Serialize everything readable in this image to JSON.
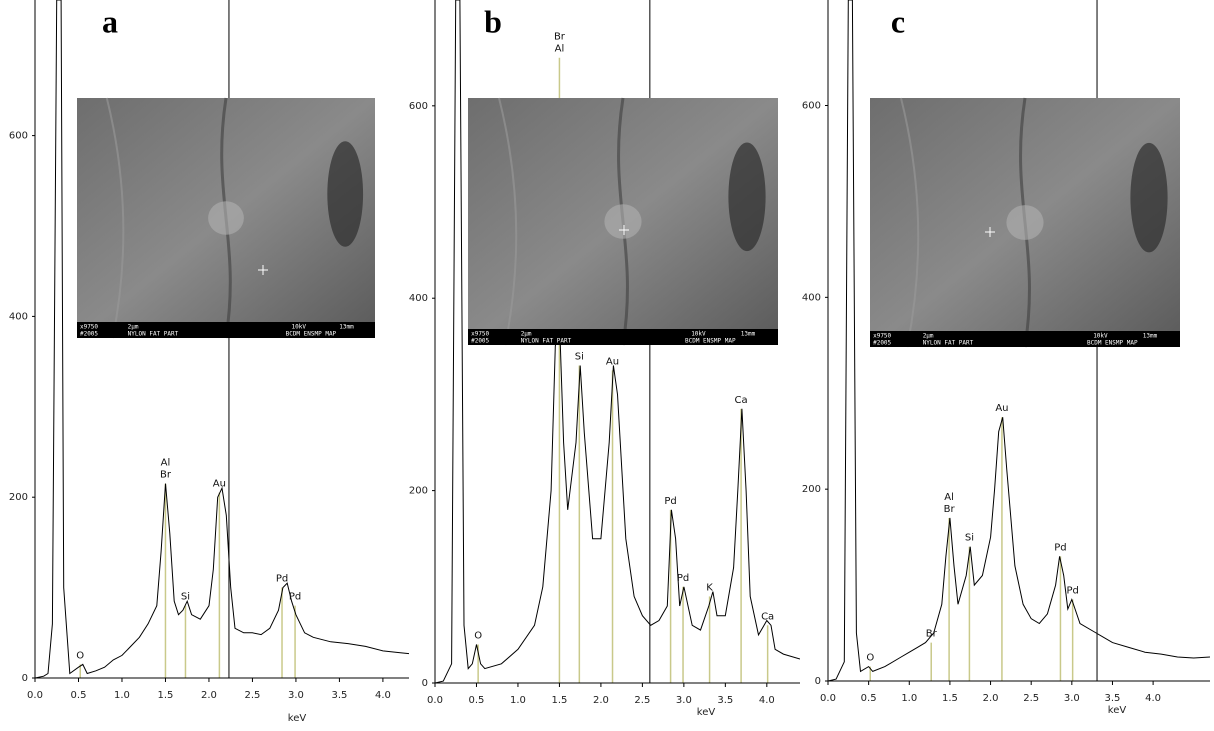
{
  "chart_data": [
    {
      "type": "line",
      "panel_label": "a",
      "x_label": "keV",
      "color": "#000000",
      "xlim": [
        0,
        4.3
      ],
      "ylim": [
        0,
        750
      ],
      "xticks": [
        {
          "value": 0,
          "label": "0.0"
        },
        0.5,
        {
          "value": 1,
          "label": "1.0"
        },
        1.5,
        {
          "value": 2,
          "label": "2.0"
        },
        2.5,
        {
          "value": 3,
          "label": "3.0"
        },
        3.5,
        {
          "value": 4,
          "label": "4.0"
        }
      ],
      "yticks": [
        0,
        200,
        400,
        600
      ],
      "cursor_x": 2.23,
      "x": [
        0,
        0.1,
        0.15,
        0.2,
        0.25,
        0.3,
        0.33,
        0.4,
        0.5,
        0.55,
        0.6,
        0.7,
        0.8,
        0.9,
        1.0,
        1.1,
        1.2,
        1.3,
        1.4,
        1.45,
        1.5,
        1.55,
        1.6,
        1.65,
        1.7,
        1.75,
        1.8,
        1.9,
        2.0,
        2.05,
        2.1,
        2.15,
        2.2,
        2.25,
        2.3,
        2.4,
        2.5,
        2.6,
        2.7,
        2.8,
        2.85,
        2.9,
        2.95,
        3.0,
        3.1,
        3.2,
        3.4,
        3.6,
        3.8,
        4.0,
        4.2,
        4.3
      ],
      "values": [
        0,
        2,
        5,
        60,
        750,
        750,
        100,
        5,
        12,
        15,
        5,
        8,
        12,
        20,
        25,
        35,
        45,
        60,
        80,
        140,
        215,
        160,
        85,
        70,
        75,
        85,
        70,
        65,
        80,
        120,
        200,
        210,
        180,
        100,
        55,
        50,
        50,
        48,
        55,
        75,
        100,
        105,
        85,
        70,
        50,
        45,
        40,
        38,
        35,
        30,
        28,
        27
      ],
      "peaks": [
        {
          "labels": [
            "O"
          ],
          "x": 0.52,
          "y": 15
        },
        {
          "labels": [
            "Al",
            "Br"
          ],
          "x": 1.5,
          "y": 215
        },
        {
          "labels": [
            "Si"
          ],
          "x": 1.73,
          "y": 80
        },
        {
          "labels": [
            "Au"
          ],
          "x": 2.12,
          "y": 205
        },
        {
          "labels": [
            "Pd"
          ],
          "x": 2.84,
          "y": 100
        },
        {
          "labels": [
            "Pd"
          ],
          "x": 2.99,
          "y": 80
        }
      ],
      "inset": {
        "caption": [
          [
            "x9750",
            "2μm",
            "10kV",
            "13mm"
          ],
          [
            "#2005",
            "NYLON FAT PART",
            "BCDM ENSMP MAP"
          ]
        ]
      }
    },
    {
      "type": "line",
      "panel_label": "b",
      "x_label": "keV",
      "color": "#000000",
      "xlim": [
        0,
        4.4
      ],
      "ylim": [
        0,
        710
      ],
      "xticks": [
        {
          "value": 0,
          "label": "0.0"
        },
        0.5,
        {
          "value": 1,
          "label": "1.0"
        },
        1.5,
        {
          "value": 2,
          "label": "2.0"
        },
        2.5,
        {
          "value": 3,
          "label": "3.0"
        },
        3.5,
        {
          "value": 4,
          "label": "4.0"
        }
      ],
      "yticks": [
        0,
        200,
        400,
        600
      ],
      "cursor_x": 2.59,
      "x": [
        0,
        0.1,
        0.2,
        0.25,
        0.3,
        0.35,
        0.4,
        0.45,
        0.5,
        0.55,
        0.6,
        0.8,
        1.0,
        1.2,
        1.3,
        1.4,
        1.45,
        1.5,
        1.55,
        1.6,
        1.7,
        1.75,
        1.8,
        1.9,
        2.0,
        2.1,
        2.15,
        2.2,
        2.3,
        2.4,
        2.5,
        2.6,
        2.7,
        2.8,
        2.85,
        2.9,
        2.95,
        3.0,
        3.1,
        3.2,
        3.3,
        3.35,
        3.4,
        3.5,
        3.6,
        3.65,
        3.7,
        3.75,
        3.8,
        3.9,
        4.0,
        4.05,
        4.1,
        4.2,
        4.4
      ],
      "values": [
        0,
        2,
        20,
        710,
        710,
        60,
        15,
        20,
        40,
        20,
        15,
        20,
        35,
        60,
        100,
        200,
        350,
        380,
        250,
        180,
        250,
        330,
        260,
        150,
        150,
        250,
        330,
        300,
        150,
        90,
        70,
        60,
        65,
        80,
        180,
        150,
        80,
        100,
        60,
        55,
        80,
        95,
        70,
        70,
        120,
        200,
        285,
        200,
        90,
        50,
        65,
        60,
        35,
        30,
        25
      ],
      "peaks": [
        {
          "labels": [
            "O"
          ],
          "x": 0.52,
          "y": 40
        },
        {
          "labels": [
            "Br",
            "Al"
          ],
          "x": 1.5,
          "y": 650
        },
        {
          "labels": [
            "Si"
          ],
          "x": 1.74,
          "y": 330
        },
        {
          "labels": [
            "Au"
          ],
          "x": 2.14,
          "y": 325
        },
        {
          "labels": [
            "Pd"
          ],
          "x": 2.84,
          "y": 180
        },
        {
          "labels": [
            "Pd"
          ],
          "x": 2.99,
          "y": 100
        },
        {
          "labels": [
            "K"
          ],
          "x": 3.31,
          "y": 90
        },
        {
          "labels": [
            "Ca"
          ],
          "x": 3.69,
          "y": 285
        },
        {
          "labels": [
            "Ca"
          ],
          "x": 4.01,
          "y": 60
        }
      ],
      "inset": {
        "caption": [
          [
            "x9750",
            "2μm",
            "10kV",
            "13mm"
          ],
          [
            "#2005",
            "NYLON FAT PART",
            "BCDM ENSMP MAP"
          ]
        ]
      }
    },
    {
      "type": "line",
      "panel_label": "c",
      "x_label": "keV",
      "color": "#000000",
      "xlim": [
        0,
        4.7
      ],
      "ylim": [
        0,
        710
      ],
      "xticks": [
        {
          "value": 0,
          "label": "0.0"
        },
        0.5,
        {
          "value": 1,
          "label": "1.0"
        },
        1.5,
        {
          "value": 2,
          "label": "2.0"
        },
        2.5,
        {
          "value": 3,
          "label": "3.0"
        },
        3.5,
        {
          "value": 4,
          "label": "4.0"
        }
      ],
      "yticks": [
        0,
        200,
        400,
        600
      ],
      "cursor_x": 3.31,
      "x": [
        0,
        0.1,
        0.2,
        0.25,
        0.3,
        0.35,
        0.4,
        0.5,
        0.55,
        0.7,
        0.9,
        1.0,
        1.1,
        1.2,
        1.3,
        1.4,
        1.45,
        1.5,
        1.55,
        1.6,
        1.7,
        1.75,
        1.8,
        1.9,
        2.0,
        2.05,
        2.1,
        2.15,
        2.2,
        2.3,
        2.4,
        2.5,
        2.6,
        2.7,
        2.8,
        2.85,
        2.9,
        2.95,
        3.0,
        3.1,
        3.3,
        3.5,
        3.7,
        3.9,
        4.1,
        4.3,
        4.5,
        4.7
      ],
      "values": [
        0,
        2,
        20,
        710,
        710,
        50,
        10,
        15,
        10,
        15,
        25,
        30,
        35,
        40,
        50,
        80,
        130,
        170,
        120,
        80,
        110,
        140,
        100,
        110,
        150,
        200,
        260,
        275,
        220,
        120,
        80,
        65,
        60,
        70,
        100,
        130,
        110,
        75,
        85,
        60,
        50,
        40,
        35,
        30,
        28,
        25,
        24,
        25
      ],
      "peaks": [
        {
          "labels": [
            "O"
          ],
          "x": 0.52,
          "y": 15
        },
        {
          "labels": [
            "Br"
          ],
          "x": 1.27,
          "y": 40
        },
        {
          "labels": [
            "Al",
            "Br"
          ],
          "x": 1.49,
          "y": 170
        },
        {
          "labels": [
            "Si"
          ],
          "x": 1.74,
          "y": 140
        },
        {
          "labels": [
            "Au"
          ],
          "x": 2.14,
          "y": 275
        },
        {
          "labels": [
            "Pd"
          ],
          "x": 2.86,
          "y": 130
        },
        {
          "labels": [
            "Pd"
          ],
          "x": 3.01,
          "y": 85
        }
      ],
      "inset": {
        "caption": [
          [
            "x9750",
            "2μm",
            "10kV",
            "13mm"
          ],
          [
            "#2005",
            "NYLON FAT PART",
            "BCDM ENSMP MAP"
          ]
        ]
      }
    }
  ]
}
